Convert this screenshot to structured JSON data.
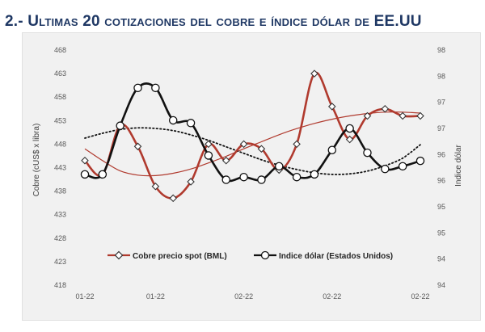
{
  "header": {
    "title": "2.- Ultimas 20 cotizaciones del cobre e índice dólar de EE.UU"
  },
  "chart_data": {
    "type": "line",
    "title": "",
    "categories": [
      "01-22",
      "01-22",
      "01-22",
      "01-22",
      "01-22",
      "01-22",
      "01-22",
      "01-22",
      "01-22",
      "02-22",
      "02-22",
      "02-22",
      "02-22",
      "02-22",
      "02-22",
      "02-22",
      "02-22",
      "02-22",
      "02-22",
      "02-22"
    ],
    "xtick_labels": [
      "01-22",
      "01-22",
      "02-22",
      "02-22",
      "02-22"
    ],
    "xtick_index": [
      0,
      4,
      9,
      14,
      19
    ],
    "y_left": {
      "label": "Cobre (cUS$ x libra)",
      "ticks": [
        468,
        463,
        458,
        453,
        448,
        443,
        438,
        433,
        428,
        423,
        418
      ],
      "range": [
        418,
        468
      ]
    },
    "y_right": {
      "label": "Indice dólar",
      "ticks": [
        "98",
        "98",
        "97",
        "97",
        "96",
        "96",
        "95",
        "95",
        "94",
        "94"
      ],
      "range": [
        93.9,
        98.25
      ]
    },
    "series": [
      {
        "name": "Cobre precio spot (BML)",
        "axis": "left",
        "color": "#b03a2e",
        "values": [
          444.5,
          441.5,
          452,
          447.5,
          439,
          436.5,
          440,
          448,
          444.5,
          448,
          447,
          442.5,
          448,
          463,
          456,
          449,
          454,
          455.5,
          454,
          454
        ]
      },
      {
        "name": "Indice dólar (Estados Unidos)",
        "axis": "right",
        "color": "#111111",
        "values": [
          95.95,
          95.95,
          96.85,
          97.55,
          97.55,
          96.95,
          96.9,
          96.3,
          95.85,
          95.9,
          95.85,
          96.1,
          95.9,
          95.95,
          96.4,
          96.8,
          96.35,
          96.05,
          96.1,
          96.2
        ]
      }
    ],
    "trendlines": [
      {
        "name": "copper-trend",
        "axis": "left",
        "style": "solid",
        "color": "#b03a2e",
        "values": [
          447,
          444.5,
          442.3,
          441.4,
          441.3,
          441.8,
          442.7,
          444,
          445.4,
          447,
          448.5,
          450,
          451.3,
          452.4,
          453.3,
          454,
          454.5,
          454.8,
          454.8,
          454.6
        ]
      },
      {
        "name": "dollar-trend",
        "axis": "right",
        "style": "dotted",
        "color": "#111111",
        "values": [
          96.62,
          96.71,
          96.78,
          96.81,
          96.8,
          96.76,
          96.68,
          96.58,
          96.46,
          96.34,
          96.22,
          96.12,
          96.04,
          95.98,
          95.95,
          95.96,
          96.01,
          96.11,
          96.25,
          96.5
        ]
      }
    ],
    "legend": {
      "position": "bottom-center",
      "items": [
        "Cobre precio spot (BML)",
        "Indice dólar (Estados Unidos)"
      ]
    },
    "grid": false
  }
}
